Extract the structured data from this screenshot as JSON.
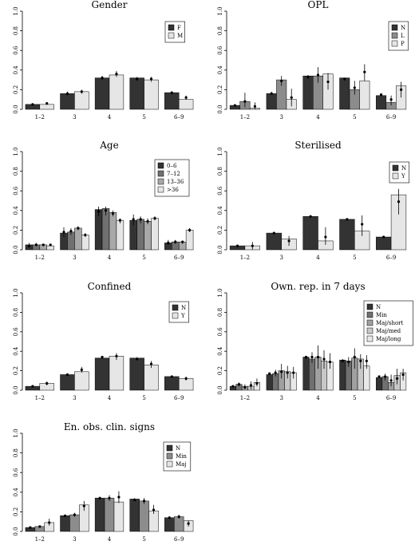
{
  "chart_data": [
    {
      "type": "bar",
      "title": "Gender",
      "categories": [
        "1–2",
        "3",
        "4",
        "5",
        "6–9"
      ],
      "ylim": [
        0,
        1
      ],
      "yticks": [
        "0.0",
        "0.2",
        "0.4",
        "0.6",
        "0.8",
        "1.0"
      ],
      "legend_position": "top-right",
      "series": [
        {
          "name": "F",
          "color": "#333333",
          "values": [
            0.05,
            0.16,
            0.32,
            0.32,
            0.17
          ]
        },
        {
          "name": "M",
          "color": "#e6e6e6",
          "values": [
            0.05,
            0.18,
            0.35,
            0.3,
            0.1
          ]
        }
      ],
      "points": [
        [
          [
            0.05,
            0.04,
            0.06
          ],
          [
            0.06,
            0.05,
            0.07
          ]
        ],
        [
          [
            0.16,
            0.14,
            0.18
          ],
          [
            0.18,
            0.16,
            0.2
          ]
        ],
        [
          [
            0.32,
            0.3,
            0.34
          ],
          [
            0.36,
            0.33,
            0.39
          ]
        ],
        [
          [
            0.31,
            0.29,
            0.33
          ],
          [
            0.31,
            0.28,
            0.33
          ]
        ],
        [
          [
            0.17,
            0.15,
            0.18
          ],
          [
            0.12,
            0.1,
            0.14
          ]
        ]
      ]
    },
    {
      "type": "bar",
      "title": "OPL",
      "categories": [
        "1–2",
        "3",
        "4",
        "5",
        "6–9"
      ],
      "ylim": [
        0,
        1
      ],
      "yticks": [
        "0.0",
        "0.2",
        "0.4",
        "0.6",
        "0.8",
        "1.0"
      ],
      "legend_position": "top-right",
      "series": [
        {
          "name": "N",
          "color": "#333333",
          "values": [
            0.04,
            0.16,
            0.34,
            0.32,
            0.14
          ]
        },
        {
          "name": "L",
          "color": "#8c8c8c",
          "values": [
            0.08,
            0.3,
            0.34,
            0.2,
            0.07
          ]
        },
        {
          "name": "P",
          "color": "#e6e6e6",
          "values": [
            0.01,
            0.1,
            0.36,
            0.29,
            0.24
          ]
        }
      ],
      "points": [
        [
          [
            0.04,
            0.03,
            0.05
          ],
          [
            0.08,
            0.02,
            0.17
          ],
          [
            0.03,
            0.0,
            0.07
          ]
        ],
        [
          [
            0.16,
            0.15,
            0.18
          ],
          [
            0.29,
            0.24,
            0.34
          ],
          [
            0.12,
            0.03,
            0.21
          ]
        ],
        [
          [
            0.33,
            0.31,
            0.35
          ],
          [
            0.35,
            0.27,
            0.43
          ],
          [
            0.28,
            0.2,
            0.37
          ]
        ],
        [
          [
            0.31,
            0.29,
            0.32
          ],
          [
            0.22,
            0.15,
            0.29
          ],
          [
            0.38,
            0.29,
            0.46
          ]
        ],
        [
          [
            0.15,
            0.13,
            0.16
          ],
          [
            0.1,
            0.04,
            0.14
          ],
          [
            0.2,
            0.12,
            0.28
          ]
        ]
      ]
    },
    {
      "type": "bar",
      "title": "Age",
      "categories": [
        "1–2",
        "3",
        "4",
        "5",
        "6–9"
      ],
      "ylim": [
        0,
        1
      ],
      "yticks": [
        "0.0",
        "0.2",
        "0.4",
        "0.6",
        "0.8",
        "1.0"
      ],
      "legend_position": "top-right",
      "series": [
        {
          "name": "0–6",
          "color": "#333333",
          "values": [
            0.05,
            0.17,
            0.41,
            0.3,
            0.07
          ]
        },
        {
          "name": "7–12",
          "color": "#707070",
          "values": [
            0.05,
            0.18,
            0.42,
            0.31,
            0.08
          ]
        },
        {
          "name": "13–36",
          "color": "#a8a8a8",
          "values": [
            0.05,
            0.22,
            0.38,
            0.29,
            0.08
          ]
        },
        {
          "name": ">36",
          "color": "#e6e6e6",
          "values": [
            0.04,
            0.15,
            0.3,
            0.32,
            0.2
          ]
        }
      ],
      "points": [
        [
          [
            0.04,
            0.02,
            0.07
          ],
          [
            0.05,
            0.04,
            0.07
          ],
          [
            0.05,
            0.04,
            0.06
          ],
          [
            0.05,
            0.04,
            0.06
          ]
        ],
        [
          [
            0.18,
            0.13,
            0.23
          ],
          [
            0.19,
            0.15,
            0.22
          ],
          [
            0.22,
            0.2,
            0.24
          ],
          [
            0.15,
            0.13,
            0.17
          ]
        ],
        [
          [
            0.39,
            0.34,
            0.44
          ],
          [
            0.4,
            0.35,
            0.44
          ],
          [
            0.37,
            0.34,
            0.4
          ],
          [
            0.3,
            0.27,
            0.32
          ]
        ],
        [
          [
            0.31,
            0.25,
            0.36
          ],
          [
            0.31,
            0.27,
            0.34
          ],
          [
            0.29,
            0.26,
            0.32
          ],
          [
            0.32,
            0.3,
            0.34
          ]
        ],
        [
          [
            0.07,
            0.05,
            0.1
          ],
          [
            0.08,
            0.06,
            0.1
          ],
          [
            0.08,
            0.06,
            0.09
          ],
          [
            0.2,
            0.18,
            0.22
          ]
        ]
      ]
    },
    {
      "type": "bar",
      "title": "Sterilised",
      "categories": [
        "1–2",
        "3",
        "4",
        "5",
        "6–9"
      ],
      "ylim": [
        0,
        1
      ],
      "yticks": [
        "0.0",
        "0.2",
        "0.4",
        "0.6",
        "0.8",
        "1.0"
      ],
      "legend_position": "top-right",
      "series": [
        {
          "name": "N",
          "color": "#333333",
          "values": [
            0.04,
            0.17,
            0.34,
            0.31,
            0.13
          ]
        },
        {
          "name": "Y",
          "color": "#e6e6e6",
          "values": [
            0.04,
            0.11,
            0.09,
            0.19,
            0.56
          ]
        }
      ],
      "points": [
        [
          [
            0.04,
            0.03,
            0.05
          ],
          [
            0.04,
            0.0,
            0.08
          ]
        ],
        [
          [
            0.17,
            0.16,
            0.18
          ],
          [
            0.09,
            0.04,
            0.14
          ]
        ],
        [
          [
            0.34,
            0.33,
            0.35
          ],
          [
            0.13,
            0.05,
            0.23
          ]
        ],
        [
          [
            0.31,
            0.3,
            0.32
          ],
          [
            0.26,
            0.14,
            0.35
          ]
        ],
        [
          [
            0.13,
            0.12,
            0.14
          ],
          [
            0.49,
            0.36,
            0.62
          ]
        ]
      ]
    },
    {
      "type": "bar",
      "title": "Confined",
      "categories": [
        "1–2",
        "3",
        "4",
        "5",
        "6–9"
      ],
      "ylim": [
        0,
        1
      ],
      "yticks": [
        "0.0",
        "0.2",
        "0.4",
        "0.6",
        "0.8",
        "1.0"
      ],
      "legend_position": "top-right",
      "series": [
        {
          "name": "N",
          "color": "#333333",
          "values": [
            0.04,
            0.16,
            0.33,
            0.33,
            0.14
          ]
        },
        {
          "name": "Y",
          "color": "#e6e6e6",
          "values": [
            0.07,
            0.19,
            0.35,
            0.26,
            0.12
          ]
        }
      ],
      "points": [
        [
          [
            0.04,
            0.03,
            0.05
          ],
          [
            0.07,
            0.05,
            0.09
          ]
        ],
        [
          [
            0.16,
            0.15,
            0.17
          ],
          [
            0.21,
            0.18,
            0.24
          ]
        ],
        [
          [
            0.34,
            0.32,
            0.35
          ],
          [
            0.35,
            0.31,
            0.38
          ]
        ],
        [
          [
            0.32,
            0.31,
            0.34
          ],
          [
            0.27,
            0.23,
            0.3
          ]
        ],
        [
          [
            0.14,
            0.13,
            0.15
          ],
          [
            0.12,
            0.1,
            0.14
          ]
        ]
      ]
    },
    {
      "type": "bar",
      "title": "Own. rep. in 7 days",
      "categories": [
        "1–2",
        "3",
        "4",
        "5",
        "6–9"
      ],
      "ylim": [
        0,
        1
      ],
      "yticks": [
        "0.0",
        "0.2",
        "0.4",
        "0.6",
        "0.8",
        "1.0"
      ],
      "legend_position": "top-left",
      "series": [
        {
          "name": "N",
          "color": "#333333",
          "values": [
            0.04,
            0.16,
            0.34,
            0.31,
            0.13
          ]
        },
        {
          "name": "Min",
          "color": "#707070",
          "values": [
            0.06,
            0.17,
            0.32,
            0.3,
            0.14
          ]
        },
        {
          "name": "Maj/short",
          "color": "#a0a0a0",
          "values": [
            0.04,
            0.2,
            0.34,
            0.33,
            0.08
          ]
        },
        {
          "name": "Maj/med",
          "color": "#c8c8c8",
          "values": [
            0.04,
            0.19,
            0.3,
            0.32,
            0.15
          ]
        },
        {
          "name": "Maj/long",
          "color": "#e8e8e8",
          "values": [
            0.08,
            0.18,
            0.29,
            0.25,
            0.18
          ]
        }
      ],
      "points": [
        [
          [
            0.04,
            0.03,
            0.05
          ],
          [
            0.06,
            0.04,
            0.08
          ],
          [
            0.03,
            0.01,
            0.06
          ],
          [
            0.05,
            0.01,
            0.09
          ],
          [
            0.07,
            0.04,
            0.12
          ]
        ],
        [
          [
            0.17,
            0.16,
            0.18
          ],
          [
            0.18,
            0.14,
            0.21
          ],
          [
            0.19,
            0.12,
            0.27
          ],
          [
            0.18,
            0.12,
            0.25
          ],
          [
            0.18,
            0.12,
            0.24
          ]
        ],
        [
          [
            0.34,
            0.32,
            0.35
          ],
          [
            0.34,
            0.28,
            0.39
          ],
          [
            0.34,
            0.22,
            0.46
          ],
          [
            0.32,
            0.22,
            0.41
          ],
          [
            0.29,
            0.22,
            0.38
          ]
        ],
        [
          [
            0.3,
            0.29,
            0.32
          ],
          [
            0.29,
            0.24,
            0.34
          ],
          [
            0.34,
            0.22,
            0.43
          ],
          [
            0.3,
            0.22,
            0.37
          ],
          [
            0.3,
            0.22,
            0.36
          ]
        ],
        [
          [
            0.14,
            0.13,
            0.15
          ],
          [
            0.14,
            0.1,
            0.17
          ],
          [
            0.1,
            0.04,
            0.16
          ],
          [
            0.12,
            0.06,
            0.22
          ],
          [
            0.16,
            0.1,
            0.22
          ]
        ]
      ]
    },
    {
      "type": "bar",
      "title": "En. obs. clin. signs",
      "categories": [
        "1–2",
        "3",
        "4",
        "5",
        "6–9"
      ],
      "ylim": [
        0,
        1
      ],
      "yticks": [
        "0.0",
        "0.2",
        "0.4",
        "0.6",
        "0.8",
        "1.0"
      ],
      "legend_position": "top-center",
      "series": [
        {
          "name": "N",
          "color": "#333333",
          "values": [
            0.04,
            0.16,
            0.34,
            0.33,
            0.14
          ]
        },
        {
          "name": "Min",
          "color": "#8c8c8c",
          "values": [
            0.05,
            0.17,
            0.34,
            0.31,
            0.15
          ]
        },
        {
          "name": "Maj",
          "color": "#e6e6e6",
          "values": [
            0.09,
            0.27,
            0.3,
            0.21,
            0.11
          ]
        }
      ],
      "points": [
        [
          [
            0.04,
            0.03,
            0.05
          ],
          [
            0.05,
            0.04,
            0.06
          ],
          [
            0.09,
            0.06,
            0.13
          ]
        ],
        [
          [
            0.16,
            0.15,
            0.17
          ],
          [
            0.17,
            0.15,
            0.19
          ],
          [
            0.26,
            0.21,
            0.31
          ]
        ],
        [
          [
            0.34,
            0.33,
            0.35
          ],
          [
            0.34,
            0.31,
            0.37
          ],
          [
            0.35,
            0.29,
            0.41
          ]
        ],
        [
          [
            0.32,
            0.31,
            0.34
          ],
          [
            0.31,
            0.28,
            0.34
          ],
          [
            0.22,
            0.18,
            0.27
          ]
        ],
        [
          [
            0.14,
            0.13,
            0.15
          ],
          [
            0.15,
            0.13,
            0.17
          ],
          [
            0.08,
            0.05,
            0.11
          ]
        ]
      ]
    }
  ]
}
